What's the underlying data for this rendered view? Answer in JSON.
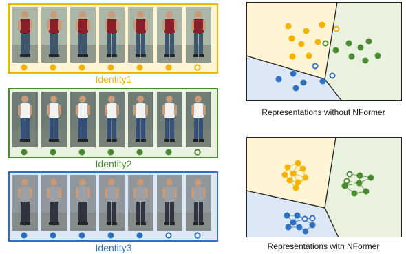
{
  "identities": [
    {
      "label": "Identity1",
      "color": "#f5b301",
      "bg": "#fff4d4",
      "shirt": "#8a1f2c",
      "pants": "#3c5670",
      "photo_bg": "#a9b6a8",
      "markers": [
        "filled",
        "filled",
        "filled",
        "filled",
        "filled",
        "filled",
        "hollow"
      ]
    },
    {
      "label": "Identity2",
      "color": "#4a8a2f",
      "bg": "#e8f2df",
      "shirt": "#f2f2f2",
      "pants": "#34507a",
      "photo_bg": "#6f7d76",
      "markers": [
        "filled",
        "filled",
        "filled",
        "filled",
        "filled",
        "filled",
        "hollow"
      ]
    },
    {
      "label": "Identity3",
      "color": "#2e6fc0",
      "bg": "#dde8f6",
      "shirt": "#9aa0a6",
      "pants": "#2f3440",
      "photo_bg": "#8f969c",
      "markers": [
        "filled",
        "filled",
        "filled",
        "filled",
        "filled",
        "hollow",
        "hollow"
      ]
    }
  ],
  "panels": [
    {
      "caption": "Representations without NFormer",
      "regions": {
        "yellow": "#fff4d4",
        "green": "#e8f2df",
        "blue": "#dde8f6"
      }
    },
    {
      "caption": "Representations with NFormer",
      "regions": {
        "yellow": "#fff4d4",
        "green": "#e8f2df",
        "blue": "#dde8f6"
      }
    }
  ],
  "colors": {
    "yellow": "#f5b301",
    "green": "#4a8a2f",
    "blue": "#2e6fc0",
    "edge": "#555555"
  }
}
